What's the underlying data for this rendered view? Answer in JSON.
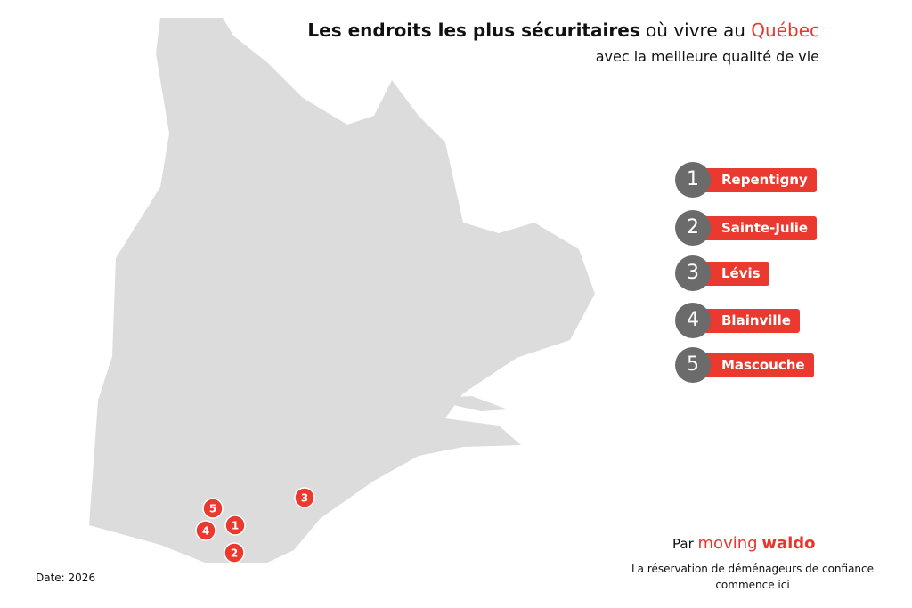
{
  "header": {
    "title_bold": "Les endroits les plus sécuritaires",
    "title_regular": "où vivre au",
    "title_highlight": "Québec",
    "subtitle": "avec la meilleure qualité de vie"
  },
  "rankings": [
    {
      "rank": 1,
      "name": "Repentigny"
    },
    {
      "rank": 2,
      "name": "Sainte-Julie"
    },
    {
      "rank": 3,
      "name": "Lévis"
    },
    {
      "rank": 4,
      "name": "Blainville"
    },
    {
      "rank": 5,
      "name": "Mascouche"
    }
  ],
  "footer": {
    "by": "Par",
    "brand_light": "moving",
    "brand_bold": "waldo",
    "tagline": "La réservation de déménageurs de confiance commence ici",
    "date": "Date: 2026"
  }
}
